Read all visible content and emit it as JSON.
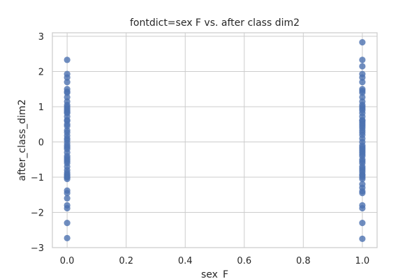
{
  "chart_data": {
    "type": "scatter",
    "title": "fontdict=sex F vs. after class dim2",
    "xlabel": "sex_F",
    "ylabel": "after_class_dim2",
    "xlim": [
      -0.05,
      1.05
    ],
    "ylim": [
      -3,
      3.1
    ],
    "xticks": [
      0.0,
      0.2,
      0.4,
      0.6,
      0.8,
      1.0
    ],
    "xtick_labels": [
      "0.0",
      "0.2",
      "0.4",
      "0.6",
      "0.8",
      "1.0"
    ],
    "yticks": [
      -3,
      -2,
      -1,
      0,
      1,
      2,
      3
    ],
    "ytick_labels": [
      "−3",
      "−2",
      "−1",
      "0",
      "1",
      "2",
      "3"
    ],
    "grid": true,
    "point_color": "#4c72b0",
    "series": [
      {
        "x": [
          0,
          0,
          0,
          0,
          0,
          0,
          0,
          0,
          0,
          0,
          0,
          0,
          0,
          0,
          0,
          0,
          0,
          0,
          0,
          0,
          0,
          0,
          0,
          0,
          0,
          0,
          0,
          0,
          0,
          0,
          0,
          0,
          0,
          0,
          0,
          0,
          0,
          0,
          0,
          0,
          0,
          0,
          0,
          0,
          0,
          0,
          0,
          0,
          0,
          0
        ],
        "y": [
          2.33,
          1.93,
          1.83,
          1.5,
          1.43,
          1.27,
          1.05,
          0.95,
          0.9,
          0.72,
          0.6,
          0.5,
          0.33,
          0.18,
          0.05,
          -0.03,
          -0.1,
          -0.3,
          -0.4,
          -0.45,
          -0.55,
          -0.6,
          -0.8,
          -0.87,
          -0.95,
          -1.0,
          -1.05,
          -1.38,
          -1.45,
          -1.8,
          -1.88,
          -2.3,
          -2.73,
          1.4,
          1.0,
          0.82,
          0.27,
          -0.2,
          -0.7,
          -1.0,
          0.45,
          -0.5,
          1.15,
          0.62,
          -0.15,
          -0.92,
          1.7,
          -1.6,
          0.1,
          0.85
        ]
      },
      {
        "x": [
          1,
          1,
          1,
          1,
          1,
          1,
          1,
          1,
          1,
          1,
          1,
          1,
          1,
          1,
          1,
          1,
          1,
          1,
          1,
          1,
          1,
          1,
          1,
          1,
          1,
          1,
          1,
          1,
          1,
          1,
          1,
          1,
          1,
          1,
          1,
          1,
          1,
          1,
          1,
          1,
          1,
          1,
          1,
          1,
          1,
          1,
          1,
          1,
          1,
          1,
          1,
          1,
          1,
          1
        ],
        "y": [
          2.83,
          2.33,
          2.15,
          1.93,
          1.83,
          1.5,
          1.4,
          1.27,
          1.05,
          0.95,
          0.9,
          0.72,
          0.6,
          0.5,
          0.4,
          0.33,
          0.2,
          0.1,
          0.0,
          -0.1,
          -0.25,
          -0.3,
          -0.4,
          -0.5,
          -0.55,
          -0.6,
          -0.75,
          -0.85,
          -0.95,
          -1.0,
          -1.05,
          -1.3,
          -1.4,
          -1.45,
          -1.8,
          -1.88,
          -2.3,
          -2.75,
          1.7,
          1.15,
          0.82,
          0.27,
          -0.15,
          -0.7,
          -0.92,
          -1.2,
          0.62,
          0.45,
          -0.35,
          1.0,
          -0.2,
          1.45,
          0.55,
          -0.8
        ]
      }
    ]
  }
}
